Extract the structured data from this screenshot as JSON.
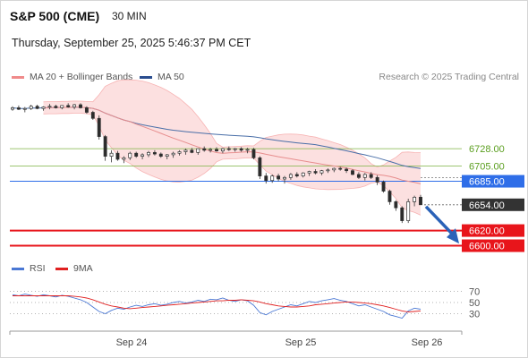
{
  "header": {
    "title": "S&P 500 (CME)",
    "interval": "30 MIN",
    "datetime": "Thursday, September 25, 2025 5:46:37 PM CET"
  },
  "legend": {
    "bollinger_label": "MA 20 + Bollinger Bands",
    "ma50_label": "MA 50",
    "rsi_label": "RSI",
    "rsi_ma_label": "9MA",
    "copyright": "Research © 2025 Trading Central",
    "colors": {
      "bollinger": "#f08a8a",
      "ma50": "#2a4d8f",
      "rsi": "#4a78d4",
      "rsi_ma": "#e02020"
    }
  },
  "chart_data": [
    {
      "type": "candlestick",
      "title": "S&P 500 (CME)",
      "x_ticks": [
        "Sep 24",
        "Sep 25",
        "Sep 26"
      ],
      "y_domain": [
        6590,
        6812
      ],
      "current_price": 6654.0,
      "levels": [
        {
          "label": "6728.00",
          "value": 6728.0,
          "kind": "resistance",
          "color": "#7cb342"
        },
        {
          "label": "6705.00",
          "value": 6705.0,
          "kind": "resistance",
          "color": "#7cb342"
        },
        {
          "label": "6685.00",
          "value": 6685.0,
          "kind": "pivot",
          "color": "#2f6ee8"
        },
        {
          "label": "6654.00",
          "value": 6654.0,
          "kind": "last",
          "color": "#333333"
        },
        {
          "label": "6620.00",
          "value": 6620.0,
          "kind": "support",
          "color": "#e8151b"
        },
        {
          "label": "6600.00",
          "value": 6600.0,
          "kind": "support",
          "color": "#e8151b"
        }
      ],
      "forecast_arrow": {
        "from": 6654,
        "to": 6604
      },
      "candles": [
        [
          6780,
          6784,
          6778,
          6782
        ],
        [
          6782,
          6785,
          6779,
          6780
        ],
        [
          6780,
          6783,
          6776,
          6781
        ],
        [
          6781,
          6786,
          6779,
          6784
        ],
        [
          6784,
          6786,
          6780,
          6781
        ],
        [
          6781,
          6784,
          6778,
          6783
        ],
        [
          6783,
          6787,
          6780,
          6784
        ],
        [
          6784,
          6786,
          6781,
          6782
        ],
        [
          6782,
          6785,
          6780,
          6785
        ],
        [
          6785,
          6788,
          6782,
          6783
        ],
        [
          6783,
          6787,
          6780,
          6786
        ],
        [
          6786,
          6788,
          6781,
          6782
        ],
        [
          6782,
          6784,
          6774,
          6776
        ],
        [
          6776,
          6778,
          6766,
          6768
        ],
        [
          6768,
          6772,
          6740,
          6744
        ],
        [
          6744,
          6746,
          6712,
          6718
        ],
        [
          6718,
          6726,
          6710,
          6722
        ],
        [
          6722,
          6725,
          6712,
          6714
        ],
        [
          6714,
          6718,
          6709,
          6716
        ],
        [
          6716,
          6724,
          6713,
          6722
        ],
        [
          6722,
          6724,
          6716,
          6718
        ],
        [
          6718,
          6722,
          6714,
          6720
        ],
        [
          6720,
          6725,
          6717,
          6723
        ],
        [
          6723,
          6726,
          6719,
          6721
        ],
        [
          6721,
          6723,
          6716,
          6718
        ],
        [
          6718,
          6721,
          6714,
          6720
        ],
        [
          6720,
          6724,
          6716,
          6722
        ],
        [
          6722,
          6726,
          6719,
          6724
        ],
        [
          6724,
          6728,
          6720,
          6726
        ],
        [
          6726,
          6729,
          6722,
          6723
        ],
        [
          6723,
          6727,
          6720,
          6728
        ],
        [
          6728,
          6731,
          6724,
          6726
        ],
        [
          6726,
          6729,
          6723,
          6727
        ],
        [
          6727,
          6730,
          6724,
          6725
        ],
        [
          6725,
          6729,
          6722,
          6728
        ],
        [
          6728,
          6731,
          6725,
          6727
        ],
        [
          6727,
          6729,
          6724,
          6728
        ],
        [
          6728,
          6730,
          6724,
          6726
        ],
        [
          6726,
          6729,
          6722,
          6727
        ],
        [
          6727,
          6729,
          6714,
          6716
        ],
        [
          6716,
          6718,
          6688,
          6692
        ],
        [
          6692,
          6696,
          6682,
          6686
        ],
        [
          6686,
          6694,
          6683,
          6692
        ],
        [
          6692,
          6695,
          6685,
          6688
        ],
        [
          6688,
          6692,
          6682,
          6690
        ],
        [
          6690,
          6696,
          6687,
          6694
        ],
        [
          6694,
          6697,
          6690,
          6692
        ],
        [
          6692,
          6697,
          6690,
          6696
        ],
        [
          6696,
          6699,
          6692,
          6698
        ],
        [
          6698,
          6701,
          6694,
          6696
        ],
        [
          6696,
          6700,
          6693,
          6699
        ],
        [
          6699,
          6702,
          6696,
          6700
        ],
        [
          6700,
          6703,
          6697,
          6702
        ],
        [
          6702,
          6704,
          6699,
          6701
        ],
        [
          6701,
          6703,
          6696,
          6699
        ],
        [
          6699,
          6701,
          6693,
          6694
        ],
        [
          6694,
          6697,
          6688,
          6690
        ],
        [
          6690,
          6696,
          6686,
          6694
        ],
        [
          6694,
          6697,
          6688,
          6690
        ],
        [
          6690,
          6693,
          6680,
          6684
        ],
        [
          6684,
          6686,
          6670,
          6672
        ],
        [
          6672,
          6674,
          6654,
          6658
        ],
        [
          6658,
          6660,
          6646,
          6650
        ],
        [
          6650,
          6652,
          6630,
          6633
        ],
        [
          6633,
          6662,
          6630,
          6658
        ],
        [
          6658,
          6666,
          6652,
          6664
        ],
        [
          6664,
          6667,
          6654,
          6654
        ]
      ]
    },
    {
      "type": "line",
      "title": "RSI",
      "y_ticks": [
        70,
        50,
        30
      ],
      "y_domain": [
        10,
        90
      ],
      "series": [
        {
          "name": "RSI",
          "values": [
            64,
            62,
            65,
            63,
            61,
            64,
            62,
            60,
            63,
            61,
            58,
            55,
            50,
            42,
            34,
            30,
            36,
            40,
            38,
            42,
            45,
            43,
            46,
            48,
            45,
            47,
            50,
            52,
            49,
            51,
            54,
            52,
            56,
            55,
            58,
            54,
            52,
            55,
            53,
            45,
            32,
            28,
            34,
            38,
            42,
            46,
            44,
            48,
            52,
            50,
            53,
            55,
            57,
            54,
            52,
            48,
            44,
            46,
            42,
            38,
            34,
            28,
            25,
            22,
            35,
            40,
            38
          ]
        },
        {
          "name": "9MA",
          "values": [
            62,
            62,
            62,
            62,
            62,
            62,
            62,
            62,
            62,
            62,
            61,
            60,
            58,
            55,
            51,
            47,
            44,
            42,
            40,
            39,
            40,
            41,
            42,
            43,
            44,
            45,
            46,
            47,
            48,
            49,
            50,
            51,
            52,
            53,
            53,
            54,
            54,
            55,
            54,
            53,
            51,
            48,
            46,
            44,
            43,
            42,
            42,
            43,
            44,
            46,
            47,
            48,
            49,
            50,
            51,
            51,
            50,
            49,
            48,
            46,
            44,
            41,
            38,
            35,
            33,
            34,
            35
          ]
        }
      ]
    }
  ]
}
